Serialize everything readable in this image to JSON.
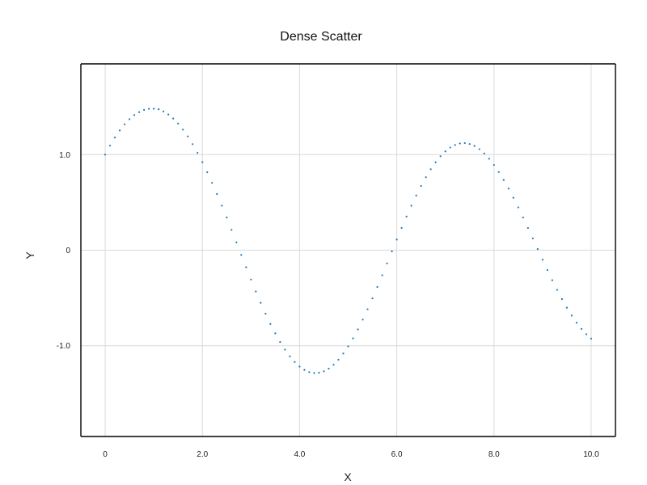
{
  "chart_data": {
    "type": "scatter",
    "title": "Dense Scatter",
    "xlabel": "X",
    "ylabel": "Y",
    "xlim": [
      -0.5,
      10.5
    ],
    "ylim": [
      -1.95,
      1.95
    ],
    "x_ticks": [
      0,
      2,
      4,
      6,
      8,
      10
    ],
    "x_tick_labels": [
      "0",
      "2.0",
      "4.0",
      "6.0",
      "8.0",
      "10.0"
    ],
    "y_ticks": [
      -1,
      0,
      1
    ],
    "y_tick_labels": [
      "-1.0",
      "0",
      "1.0"
    ],
    "grid": true,
    "legend": "none",
    "colors": {
      "series": "#1f77b4",
      "grid": "#d9d9d9",
      "axis": "#000000"
    },
    "series": [
      {
        "x": [
          0,
          0.1,
          0.2,
          0.3,
          0.4,
          0.5,
          0.6,
          0.7,
          0.8,
          0.9,
          1,
          1.1,
          1.2,
          1.3,
          1.4,
          1.5,
          1.6,
          1.7,
          1.8,
          1.9,
          2,
          2.1,
          2.2,
          2.3,
          2.4,
          2.5,
          2.6,
          2.7,
          2.8,
          2.9,
          3,
          3.1,
          3.2,
          3.3,
          3.4,
          3.5,
          3.6,
          3.7,
          3.8,
          3.9,
          4,
          4.1,
          4.2,
          4.3,
          4.4,
          4.5,
          4.6,
          4.7,
          4.8,
          4.9,
          5,
          5.1,
          5.2,
          5.3,
          5.4,
          5.5,
          5.6,
          5.7,
          5.8,
          5.9,
          6,
          6.1,
          6.2,
          6.3,
          6.4,
          6.5,
          6.6,
          6.7,
          6.8,
          6.9,
          7,
          7.1,
          7.2,
          7.3,
          7.4,
          7.5,
          7.6,
          7.7,
          7.8,
          7.9,
          8,
          8.1,
          8.2,
          8.3,
          8.4,
          8.5,
          8.6,
          8.7,
          8.8,
          8.9,
          9,
          9.1,
          9.2,
          9.3,
          9.4,
          9.5,
          9.6,
          9.7,
          9.8,
          9.9,
          10
        ],
        "y": [
          1.0,
          1.094,
          1.179,
          1.253,
          1.317,
          1.371,
          1.414,
          1.445,
          1.468,
          1.479,
          1.481,
          1.475,
          1.452,
          1.42,
          1.378,
          1.325,
          1.262,
          1.191,
          1.11,
          1.019,
          0.921,
          0.816,
          0.705,
          0.588,
          0.466,
          0.342,
          0.213,
          0.082,
          -0.05,
          -0.179,
          -0.307,
          -0.432,
          -0.551,
          -0.665,
          -0.772,
          -0.87,
          -0.961,
          -1.041,
          -1.111,
          -1.17,
          -1.218,
          -1.253,
          -1.276,
          -1.286,
          -1.283,
          -1.268,
          -1.24,
          -1.199,
          -1.146,
          -1.082,
          -1.007,
          -0.923,
          -0.829,
          -0.727,
          -0.618,
          -0.504,
          -0.385,
          -0.262,
          -0.138,
          -0.013,
          0.111,
          0.233,
          0.352,
          0.465,
          0.572,
          0.672,
          0.764,
          0.847,
          0.92,
          0.983,
          1.034,
          1.074,
          1.101,
          1.117,
          1.121,
          1.111,
          1.09,
          1.057,
          1.012,
          0.957,
          0.892,
          0.818,
          0.735,
          0.645,
          0.549,
          0.448,
          0.342,
          0.233,
          0.123,
          0.012,
          -0.099,
          -0.208,
          -0.314,
          -0.416,
          -0.512,
          -0.602,
          -0.684,
          -0.759,
          -0.824,
          -0.88,
          -0.925
        ]
      }
    ]
  }
}
